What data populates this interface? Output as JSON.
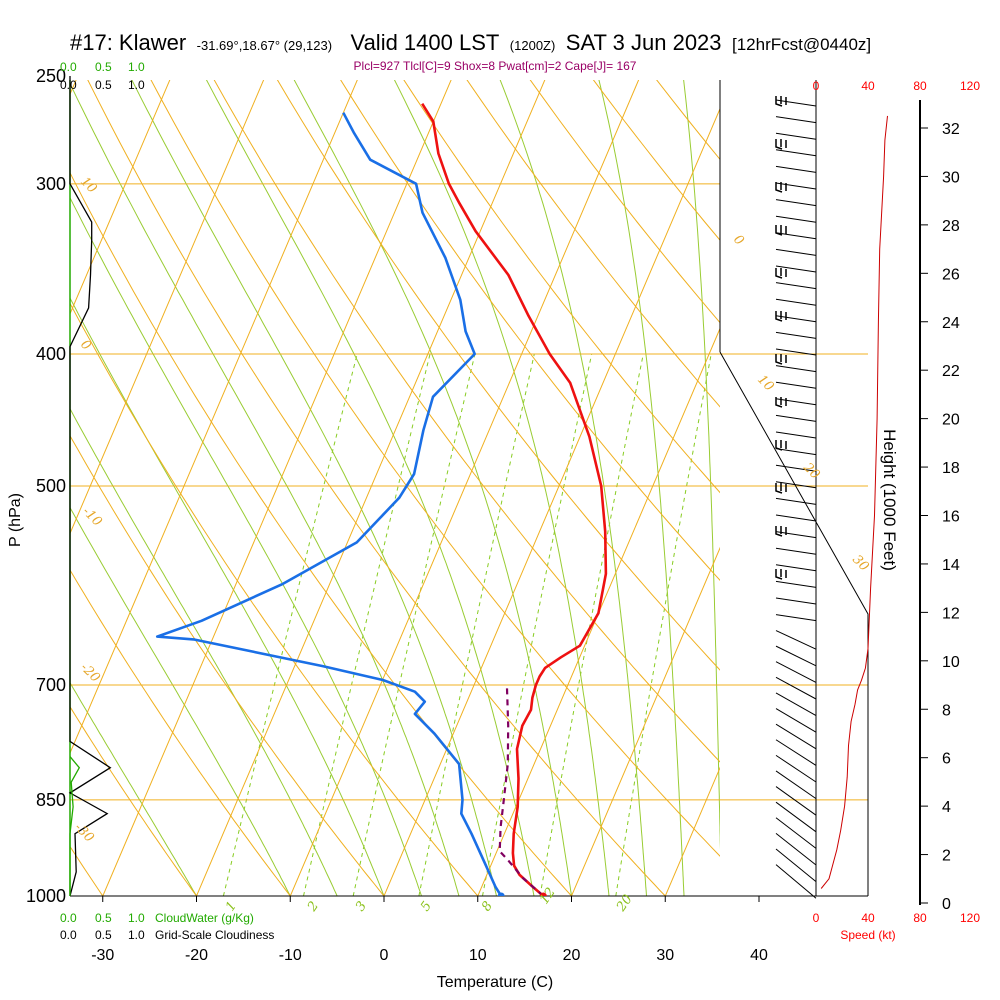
{
  "title": {
    "station": "#17: Klawer",
    "coords": "-31.69°,18.67° (29,123)",
    "valid": "Valid 1400 LST",
    "zulu": "(1200Z)",
    "date": "SAT 3 Jun 2023",
    "fcst": "[12hrFcst@0440z]"
  },
  "params_line": "Plcl=927 Tlcl[C]=9 Shox=8 Pwat[cm]=2 Cape[J]= 167",
  "labels": {
    "p_axis": "P (hPa)",
    "t_axis": "Temperature (C)",
    "h_axis": "Height (1000 Feet)",
    "speed_axis": "Speed (kt)",
    "cloudwater": "CloudWater (g/Kg)",
    "cloudiness": "Grid-Scale Cloudiness"
  },
  "cloud_scale": [
    "0.0",
    "0.5",
    "1.0"
  ],
  "speed_ticks": [
    "0",
    "40",
    "80",
    "120"
  ],
  "colors": {
    "temperature": "#ee1111",
    "dewpoint": "#1a6fe6",
    "parcel": "#800060",
    "isotherm": "#f0b020",
    "dry_adiabat": "#f0b020",
    "moist_adiabat": "#99cc33",
    "mixing_ratio": "#88cc22",
    "cloudwater": "#22aa00",
    "cloudiness": "#000000",
    "wind_speed": "#cc0000"
  },
  "chart_data": {
    "type": "line",
    "x_axis": {
      "label": "Temperature (C)",
      "ticks": [
        -30,
        -20,
        -10,
        0,
        10,
        20,
        30,
        40
      ]
    },
    "y_axis": {
      "label": "P (hPa)",
      "scale": "log",
      "ticks": [
        250,
        300,
        400,
        500,
        700,
        850,
        1000
      ]
    },
    "height_axis": {
      "label": "Height (1000 Feet)",
      "ticks": [
        0,
        2,
        4,
        6,
        8,
        10,
        12,
        14,
        16,
        18,
        20,
        22,
        24,
        26,
        28,
        30,
        32
      ]
    },
    "speed_axis": {
      "label": "Speed (kt)",
      "ticks": [
        0,
        40,
        80,
        120
      ]
    },
    "isotherm_labels": [
      "10",
      "0",
      "-10",
      "-20",
      "-30",
      "0",
      "10",
      "20",
      "30"
    ],
    "mixing_ratio_labels": [
      "1",
      "2",
      "3",
      "5",
      "8",
      "12",
      "20"
    ],
    "series": [
      {
        "name": "temperature",
        "points": [
          [
            17.0,
            1000
          ],
          [
            15.5,
            985
          ],
          [
            13.5,
            965
          ],
          [
            12.5,
            950
          ],
          [
            11.8,
            930
          ],
          [
            11.0,
            900
          ],
          [
            10.2,
            860
          ],
          [
            9.0,
            820
          ],
          [
            7.5,
            780
          ],
          [
            7.0,
            750
          ],
          [
            7.2,
            730
          ],
          [
            6.8,
            715
          ],
          [
            6.6,
            700
          ],
          [
            6.6,
            690
          ],
          [
            6.8,
            680
          ],
          [
            8.0,
            668
          ],
          [
            9.5,
            655
          ],
          [
            10.0,
            620
          ],
          [
            9.0,
            580
          ],
          [
            7.0,
            540
          ],
          [
            4.5,
            500
          ],
          [
            1.0,
            460
          ],
          [
            -3.5,
            420
          ],
          [
            -7.0,
            400
          ],
          [
            -11.0,
            375
          ],
          [
            -15.0,
            350
          ],
          [
            -20.5,
            325
          ],
          [
            -23.5,
            310
          ],
          [
            -25.5,
            300
          ],
          [
            -28.0,
            285
          ],
          [
            -30.0,
            270
          ],
          [
            -32.0,
            262
          ]
        ]
      },
      {
        "name": "dewpoint",
        "points": [
          [
            12.5,
            1000
          ],
          [
            11.5,
            985
          ],
          [
            9.5,
            950
          ],
          [
            6.5,
            900
          ],
          [
            4.5,
            870
          ],
          [
            4.0,
            850
          ],
          [
            2.0,
            800
          ],
          [
            -2.0,
            760
          ],
          [
            -5.0,
            735
          ],
          [
            -4.5,
            720
          ],
          [
            -6.0,
            708
          ],
          [
            -10.0,
            694
          ],
          [
            -17.0,
            678
          ],
          [
            -32.0,
            648
          ],
          [
            -36.0,
            645
          ],
          [
            -32.0,
            628
          ],
          [
            -25.0,
            590
          ],
          [
            -19.0,
            550
          ],
          [
            -16.5,
            510
          ],
          [
            -16.0,
            490
          ],
          [
            -17.0,
            455
          ],
          [
            -17.5,
            430
          ],
          [
            -15.0,
            400
          ],
          [
            -17.0,
            385
          ],
          [
            -19.0,
            365
          ],
          [
            -22.5,
            340
          ],
          [
            -27.0,
            315
          ],
          [
            -29.0,
            300
          ],
          [
            -35.0,
            288
          ],
          [
            -38.0,
            275
          ],
          [
            -40.0,
            266
          ]
        ]
      },
      {
        "name": "parcel",
        "points": [
          [
            17.0,
            1000
          ],
          [
            14.0,
            970
          ],
          [
            11.5,
            940
          ],
          [
            10.3,
            927
          ],
          [
            9.3,
            890
          ],
          [
            8.4,
            850
          ],
          [
            7.2,
            800
          ],
          [
            5.5,
            750
          ],
          [
            3.5,
            700
          ]
        ]
      }
    ],
    "surface_points": {
      "temperature": 17.0,
      "dewpoint": 12.5,
      "pressure": 1000
    },
    "wind_speed_profile": {
      "unit": "kt",
      "points": [
        [
          4,
          0.6
        ],
        [
          10,
          1.0
        ],
        [
          13,
          1.6
        ],
        [
          16,
          2.2
        ],
        [
          19,
          3.0
        ],
        [
          22,
          4.0
        ],
        [
          24,
          5.2
        ],
        [
          25,
          6.5
        ],
        [
          27,
          7.5
        ],
        [
          30,
          8.2
        ],
        [
          32,
          8.8
        ],
        [
          35,
          9.2
        ],
        [
          38,
          9.7
        ],
        [
          40,
          10.5
        ],
        [
          42,
          13.0
        ],
        [
          45,
          16.0
        ],
        [
          47,
          20.0
        ],
        [
          48,
          24.0
        ],
        [
          49,
          27.0
        ],
        [
          50,
          28.0
        ],
        [
          52,
          30.0
        ],
        [
          53,
          31.5
        ],
        [
          55,
          32.5
        ]
      ]
    },
    "cloudiness_profile": {
      "scale": [
        0,
        1.0
      ],
      "points": [
        [
          250,
          0
        ],
        [
          300,
          0
        ],
        [
          320,
          0.35
        ],
        [
          330,
          0.35
        ],
        [
          350,
          0.33
        ],
        [
          370,
          0.3
        ],
        [
          395,
          0.0
        ],
        [
          400,
          0
        ],
        [
          770,
          0
        ],
        [
          805,
          0.65
        ],
        [
          840,
          0.0
        ],
        [
          870,
          0.6
        ],
        [
          900,
          0.08
        ],
        [
          960,
          0.1
        ],
        [
          1000,
          0
        ]
      ]
    },
    "cloudwater_profile": {
      "scale": [
        0,
        1.0
      ],
      "points": [
        [
          790,
          0
        ],
        [
          805,
          0.15
        ],
        [
          825,
          0.02
        ],
        [
          860,
          0.05
        ],
        [
          900,
          0.0
        ],
        [
          1000,
          0
        ]
      ]
    }
  }
}
